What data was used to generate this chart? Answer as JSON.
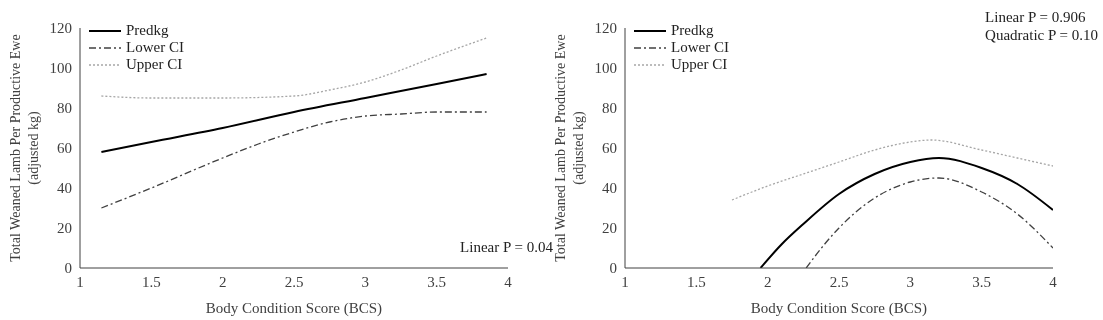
{
  "chart_data": [
    {
      "type": "line",
      "xlabel": "Body Condition Score (BCS)",
      "ylabel": "Total Weaned Lamb Per Productive Ewe\n(adjusted kg)",
      "xlim": [
        1,
        4
      ],
      "xticks": [
        1,
        1.5,
        2,
        2.5,
        3,
        3.5,
        4
      ],
      "ylim": [
        0,
        120
      ],
      "yticks": [
        0,
        20,
        40,
        60,
        80,
        100,
        120
      ],
      "grid": false,
      "legend": "top left",
      "marker": "none",
      "annotations": [
        "Linear P = 0.04"
      ],
      "series": [
        {
          "name": "Predkg",
          "color": "#000000",
          "line_style": "solid",
          "x": [
            1.15,
            1.5,
            2,
            2.5,
            3,
            3.5,
            3.85
          ],
          "values": [
            58,
            63,
            70,
            78,
            85,
            92,
            97
          ]
        },
        {
          "name": "Lower CI",
          "color": "#404040",
          "line_style": "dashed",
          "x": [
            1.15,
            1.5,
            2,
            2.25,
            2.5,
            2.75,
            3,
            3.25,
            3.5,
            3.85
          ],
          "values": [
            30,
            40,
            55,
            62,
            68,
            73,
            76,
            77,
            78,
            78
          ]
        },
        {
          "name": "Upper CI",
          "color": "#a6a6a6",
          "line_style": "dotted",
          "x": [
            1.15,
            1.5,
            2,
            2.5,
            2.75,
            3,
            3.25,
            3.5,
            3.85
          ],
          "values": [
            86,
            85,
            85,
            86,
            89,
            93,
            99,
            106,
            115
          ]
        }
      ]
    },
    {
      "type": "line",
      "xlabel": "Body Condition Score (BCS)",
      "ylabel": "Total Weaned Lamb Per Productive Ewe\n(adjusted kg)",
      "xlim": [
        1,
        4
      ],
      "xticks": [
        1,
        1.5,
        2,
        2.5,
        3,
        3.5,
        4
      ],
      "ylim": [
        0,
        120
      ],
      "yticks": [
        0,
        20,
        40,
        60,
        80,
        100,
        120
      ],
      "grid": false,
      "legend": "top left",
      "marker": "none",
      "annotations": [
        "Linear P = 0.906",
        "Quadratic P = 0.10"
      ],
      "series": [
        {
          "name": "Predkg",
          "color": "#000000",
          "line_style": "solid",
          "x": [
            1.95,
            2.1,
            2.25,
            2.5,
            2.75,
            3,
            3.2,
            3.5,
            3.75,
            4
          ],
          "values": [
            0,
            12,
            22,
            37,
            47,
            53,
            55,
            50,
            42,
            29
          ]
        },
        {
          "name": "Lower CI",
          "color": "#404040",
          "line_style": "dashed",
          "x": [
            2.27,
            2.4,
            2.5,
            2.75,
            3,
            3.2,
            3.5,
            3.75,
            4
          ],
          "values": [
            0,
            12,
            20,
            35,
            43,
            45,
            38,
            27,
            10
          ]
        },
        {
          "name": "Upper CI",
          "color": "#a6a6a6",
          "line_style": "dotted",
          "x": [
            1.75,
            2,
            2.25,
            2.5,
            2.75,
            3,
            3.15,
            3.5,
            3.75,
            4
          ],
          "values": [
            34,
            41,
            47,
            53,
            59,
            63,
            64,
            59,
            55,
            51
          ]
        }
      ]
    }
  ]
}
